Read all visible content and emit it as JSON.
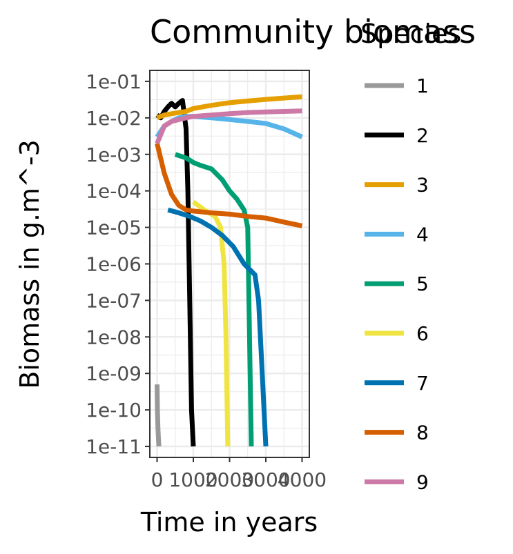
{
  "chart_data": {
    "type": "line",
    "title": "Community biomass",
    "xlabel": "Time in years",
    "ylabel": "Biomass in g.m^-3",
    "x_ticks": [
      0,
      1000,
      2000,
      3000,
      4000
    ],
    "x_tick_labels": [
      "0",
      "1000",
      "2000",
      "3000",
      "4000"
    ],
    "xlim": [
      -200,
      4200
    ],
    "y_scale": "log10",
    "ylim": [
      5e-12,
      0.2
    ],
    "y_ticks": [
      0.1,
      0.01,
      0.001,
      0.0001,
      1e-05,
      1e-06,
      1e-07,
      1e-08,
      1e-09,
      1e-10,
      1e-11
    ],
    "y_tick_labels": [
      "1e-01",
      "1e-02",
      "1e-03",
      "1e-04",
      "1e-05",
      "1e-06",
      "1e-07",
      "1e-08",
      "1e-09",
      "1e-10",
      "1e-11"
    ],
    "grid": true,
    "legend": {
      "title": "Species",
      "position": "right"
    },
    "series": [
      {
        "name": "1",
        "color": "#999999",
        "x": [
          0,
          10,
          25,
          50
        ],
        "y": [
          5e-10,
          1e-10,
          3e-11,
          1e-11
        ]
      },
      {
        "name": "2",
        "color": "#000000",
        "x": [
          0,
          100,
          200,
          300,
          400,
          500,
          600,
          700,
          800,
          850,
          900,
          950,
          1000
        ],
        "y": [
          0.012,
          0.01,
          0.015,
          0.02,
          0.025,
          0.02,
          0.025,
          0.03,
          0.005,
          0.0001,
          1e-07,
          1e-10,
          1e-11
        ]
      },
      {
        "name": "3",
        "color": "#E69F00",
        "x": [
          0,
          200,
          400,
          600,
          800,
          1000,
          1500,
          2000,
          2500,
          3000,
          3500,
          4000
        ],
        "y": [
          0.01,
          0.012,
          0.013,
          0.014,
          0.015,
          0.018,
          0.022,
          0.026,
          0.029,
          0.032,
          0.035,
          0.038
        ]
      },
      {
        "name": "4",
        "color": "#56B4E9",
        "x": [
          0,
          200,
          400,
          600,
          800,
          1000,
          1500,
          2000,
          2500,
          3000,
          3500,
          4000
        ],
        "y": [
          0.003,
          0.006,
          0.008,
          0.01,
          0.011,
          0.011,
          0.01,
          0.009,
          0.008,
          0.007,
          0.005,
          0.003
        ]
      },
      {
        "name": "5",
        "color": "#009E73",
        "x": [
          500,
          800,
          1000,
          1200,
          1500,
          1800,
          2000,
          2200,
          2400,
          2500,
          2550,
          2600
        ],
        "y": [
          0.001,
          0.0008,
          0.0006,
          0.0005,
          0.0004,
          0.0002,
          0.0001,
          6e-05,
          3e-05,
          1e-05,
          1e-08,
          1e-11
        ]
      },
      {
        "name": "6",
        "color": "#F0E442",
        "x": [
          1000,
          1300,
          1600,
          1750,
          1850,
          1900,
          1950
        ],
        "y": [
          5e-05,
          3e-05,
          2e-05,
          1e-05,
          1e-06,
          1e-08,
          1e-11
        ]
      },
      {
        "name": "7",
        "color": "#0072B2",
        "x": [
          300,
          600,
          900,
          1200,
          1500,
          1800,
          2100,
          2400,
          2700,
          2800,
          2900,
          3000
        ],
        "y": [
          3e-05,
          2.5e-05,
          2e-05,
          1.5e-05,
          1e-05,
          6e-06,
          3e-06,
          1e-06,
          5e-07,
          1e-07,
          1e-09,
          1e-11
        ]
      },
      {
        "name": "8",
        "color": "#D55E00",
        "x": [
          0,
          200,
          400,
          600,
          800,
          1000,
          1500,
          2000,
          2500,
          3000,
          3500,
          4000
        ],
        "y": [
          0.002,
          0.0003,
          8e-05,
          4e-05,
          3e-05,
          2.8e-05,
          2.5e-05,
          2.3e-05,
          2e-05,
          1.8e-05,
          1.4e-05,
          1.1e-05
        ]
      },
      {
        "name": "9",
        "color": "#CC79A7",
        "x": [
          0,
          200,
          400,
          600,
          800,
          1000,
          1500,
          2000,
          2500,
          3000,
          3500,
          4000
        ],
        "y": [
          0.002,
          0.006,
          0.008,
          0.009,
          0.01,
          0.011,
          0.012,
          0.013,
          0.014,
          0.0145,
          0.015,
          0.0155
        ]
      }
    ]
  }
}
